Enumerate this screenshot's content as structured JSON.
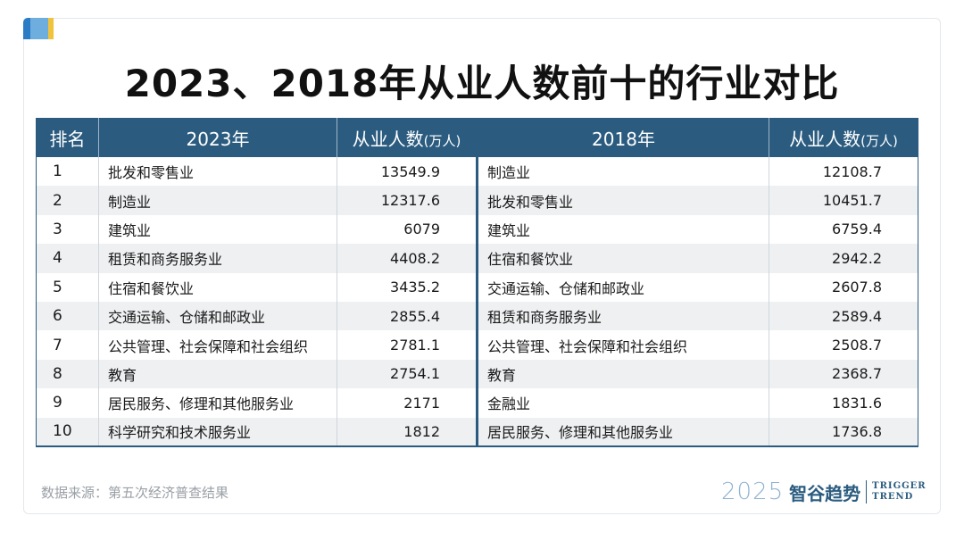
{
  "title": "2023、2018年从业人数前十的行业对比",
  "headers": {
    "rank": "排名",
    "year_a": "2023年",
    "count_a": "从业人数",
    "unit_a": "(万人)",
    "year_b": "2018年",
    "count_b": "从业人数",
    "unit_b": "(万人)"
  },
  "rows": [
    {
      "rank": "1",
      "ind_2023": "批发和零售业",
      "val_2023": "13549.9",
      "ind_2018": "制造业",
      "val_2018": "12108.7"
    },
    {
      "rank": "2",
      "ind_2023": "制造业",
      "val_2023": "12317.6",
      "ind_2018": "批发和零售业",
      "val_2018": "10451.7"
    },
    {
      "rank": "3",
      "ind_2023": "建筑业",
      "val_2023": "6079",
      "ind_2018": "建筑业",
      "val_2018": "6759.4"
    },
    {
      "rank": "4",
      "ind_2023": "租赁和商务服务业",
      "val_2023": "4408.2",
      "ind_2018": "住宿和餐饮业",
      "val_2018": "2942.2"
    },
    {
      "rank": "5",
      "ind_2023": "住宿和餐饮业",
      "val_2023": "3435.2",
      "ind_2018": "交通运输、仓储和邮政业",
      "val_2018": "2607.8"
    },
    {
      "rank": "6",
      "ind_2023": "交通运输、仓储和邮政业",
      "val_2023": "2855.4",
      "ind_2018": "租赁和商务服务业",
      "val_2018": "2589.4"
    },
    {
      "rank": "7",
      "ind_2023": "公共管理、社会保障和社会组织",
      "val_2023": "2781.1",
      "ind_2018": "公共管理、社会保障和社会组织",
      "val_2018": "2508.7"
    },
    {
      "rank": "8",
      "ind_2023": "教育",
      "val_2023": "2754.1",
      "ind_2018": "教育",
      "val_2018": "2368.7"
    },
    {
      "rank": "9",
      "ind_2023": "居民服务、修理和其他服务业",
      "val_2023": "2171",
      "ind_2018": "金融业",
      "val_2018": "1831.6"
    },
    {
      "rank": "10",
      "ind_2023": "科学研究和技术服务业",
      "val_2023": "1812",
      "ind_2018": "居民服务、修理和其他服务业",
      "val_2018": "1736.8"
    }
  ],
  "source": "数据来源：第五次经济普查结果",
  "brand": {
    "year": "2025",
    "name": "智谷趋势",
    "en_line1": "TRIGGER",
    "en_line2": "TREND"
  },
  "colors": {
    "header_bg": "#2b5c80",
    "stripe": "#eef0f2",
    "accent_blue": "#2b7cc4",
    "accent_yellow": "#f2c23a"
  }
}
